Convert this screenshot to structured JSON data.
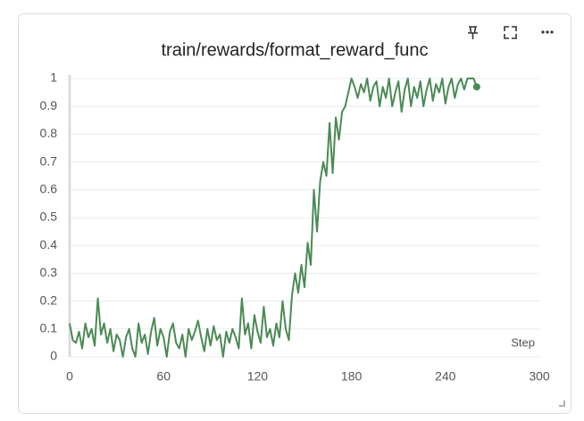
{
  "chart_data": {
    "type": "line",
    "title": "train/rewards/format_reward_func",
    "x_label": "Step",
    "color": "#4b8a55",
    "x": [
      0,
      2,
      4,
      6,
      8,
      10,
      12,
      14,
      16,
      18,
      20,
      22,
      24,
      26,
      28,
      30,
      32,
      34,
      36,
      38,
      40,
      42,
      44,
      46,
      48,
      50,
      52,
      54,
      56,
      58,
      60,
      62,
      64,
      66,
      68,
      70,
      72,
      74,
      76,
      78,
      80,
      82,
      84,
      86,
      88,
      90,
      92,
      94,
      96,
      98,
      100,
      102,
      104,
      106,
      108,
      110,
      112,
      114,
      116,
      118,
      120,
      122,
      124,
      126,
      128,
      130,
      132,
      134,
      136,
      138,
      140,
      142,
      144,
      146,
      148,
      150,
      152,
      154,
      156,
      158,
      160,
      162,
      164,
      166,
      168,
      170,
      172,
      174,
      176,
      178,
      180,
      182,
      184,
      186,
      188,
      190,
      192,
      194,
      196,
      198,
      200,
      202,
      204,
      206,
      208,
      210,
      212,
      214,
      216,
      218,
      220,
      222,
      224,
      226,
      228,
      230,
      232,
      234,
      236,
      238,
      240,
      242,
      244,
      246,
      248,
      250,
      252,
      254,
      256,
      258,
      260
    ],
    "values": [
      0.12,
      0.06,
      0.05,
      0.09,
      0.03,
      0.12,
      0.07,
      0.1,
      0.04,
      0.21,
      0.08,
      0.12,
      0.05,
      0.1,
      0.02,
      0.08,
      0.06,
      0.0,
      0.07,
      0.1,
      0.03,
      0.0,
      0.12,
      0.05,
      0.08,
      0.01,
      0.09,
      0.14,
      0.04,
      0.1,
      0.07,
      0.0,
      0.09,
      0.12,
      0.05,
      0.03,
      0.08,
      0.0,
      0.1,
      0.06,
      0.09,
      0.13,
      0.07,
      0.02,
      0.1,
      0.04,
      0.11,
      0.06,
      0.08,
      0.0,
      0.09,
      0.05,
      0.1,
      0.07,
      0.03,
      0.21,
      0.08,
      0.12,
      0.03,
      0.15,
      0.09,
      0.05,
      0.18,
      0.07,
      0.1,
      0.04,
      0.12,
      0.07,
      0.2,
      0.1,
      0.06,
      0.22,
      0.3,
      0.23,
      0.33,
      0.25,
      0.41,
      0.33,
      0.6,
      0.45,
      0.63,
      0.7,
      0.65,
      0.84,
      0.66,
      0.86,
      0.78,
      0.88,
      0.9,
      0.95,
      1.0,
      0.97,
      0.93,
      0.98,
      0.95,
      1.0,
      0.92,
      0.97,
      0.99,
      0.9,
      0.97,
      0.93,
      1.0,
      0.9,
      0.95,
      0.99,
      0.88,
      0.96,
      1.0,
      0.9,
      0.97,
      0.93,
      0.99,
      0.9,
      0.96,
      1.0,
      0.92,
      0.98,
      0.95,
      1.0,
      0.91,
      0.97,
      1.0,
      0.93,
      0.98,
      1.0,
      0.96,
      1.0,
      1.0,
      1.0,
      0.97
    ],
    "xlim": [
      0,
      300
    ],
    "xticks": [
      0,
      60,
      120,
      180,
      240,
      300
    ],
    "ylim": [
      0,
      1
    ],
    "yticks": [
      0,
      0.1,
      0.2,
      0.3,
      0.4,
      0.5,
      0.6,
      0.7,
      0.8,
      0.9,
      1
    ],
    "grid": true
  }
}
